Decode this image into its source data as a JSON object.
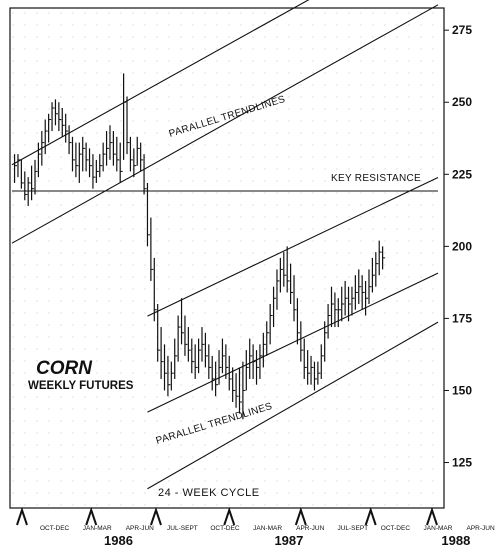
{
  "chart_data": {
    "type": "ohlc",
    "title": "CORN",
    "subtitle": "WEEKLY FUTURES",
    "ylim": [
      112,
      282
    ],
    "y_ticks": [
      125,
      150,
      175,
      200,
      225,
      250,
      275
    ],
    "x_range": [
      1985.625,
      1988.125
    ],
    "quarters": [
      {
        "label": "OCT-DEC",
        "x": 1985.875
      },
      {
        "label": "JAN-MAR",
        "x": 1986.125
      },
      {
        "label": "APR-JUN",
        "x": 1986.375
      },
      {
        "label": "JUL-SEPT",
        "x": 1986.625
      },
      {
        "label": "OCT-DEC",
        "x": 1986.875
      },
      {
        "label": "JAN-MAR",
        "x": 1987.125
      },
      {
        "label": "APR-JUN",
        "x": 1987.375
      },
      {
        "label": "JUL-SEPT",
        "x": 1987.625
      },
      {
        "label": "OCT-DEC",
        "x": 1987.875
      },
      {
        "label": "JAN-MAR",
        "x": 1988.125
      },
      {
        "label": "APR-JUN",
        "x": 1988.375
      }
    ],
    "years": [
      {
        "label": "1986",
        "x": 1986.25
      },
      {
        "label": "1987",
        "x": 1987.25
      },
      {
        "label": "1988",
        "x": 1988.23
      }
    ],
    "series": [
      {
        "values": [
          {
            "x": 1985.6,
            "h": 236,
            "l": 226,
            "c": 232
          },
          {
            "x": 1985.62,
            "h": 234,
            "l": 224,
            "c": 230
          },
          {
            "x": 1985.64,
            "h": 232,
            "l": 222,
            "c": 228
          },
          {
            "x": 1985.66,
            "h": 232,
            "l": 224,
            "c": 230
          },
          {
            "x": 1985.68,
            "h": 230,
            "l": 220,
            "c": 222
          },
          {
            "x": 1985.7,
            "h": 226,
            "l": 216,
            "c": 218
          },
          {
            "x": 1985.72,
            "h": 224,
            "l": 214,
            "c": 222
          },
          {
            "x": 1985.74,
            "h": 228,
            "l": 216,
            "c": 220
          },
          {
            "x": 1985.76,
            "h": 230,
            "l": 218,
            "c": 226
          },
          {
            "x": 1985.78,
            "h": 236,
            "l": 224,
            "c": 232
          },
          {
            "x": 1985.8,
            "h": 240,
            "l": 228,
            "c": 236
          },
          {
            "x": 1985.82,
            "h": 244,
            "l": 232,
            "c": 240
          },
          {
            "x": 1985.84,
            "h": 246,
            "l": 236,
            "c": 244
          },
          {
            "x": 1985.86,
            "h": 250,
            "l": 240,
            "c": 248
          },
          {
            "x": 1985.88,
            "h": 251,
            "l": 242,
            "c": 246
          },
          {
            "x": 1985.9,
            "h": 250,
            "l": 240,
            "c": 244
          },
          {
            "x": 1985.92,
            "h": 248,
            "l": 238,
            "c": 242
          },
          {
            "x": 1985.94,
            "h": 246,
            "l": 236,
            "c": 240
          },
          {
            "x": 1985.96,
            "h": 242,
            "l": 232,
            "c": 236
          },
          {
            "x": 1985.98,
            "h": 238,
            "l": 226,
            "c": 230
          },
          {
            "x": 1986.0,
            "h": 236,
            "l": 224,
            "c": 228
          },
          {
            "x": 1986.02,
            "h": 236,
            "l": 222,
            "c": 232
          },
          {
            "x": 1986.04,
            "h": 238,
            "l": 226,
            "c": 234
          },
          {
            "x": 1986.06,
            "h": 236,
            "l": 226,
            "c": 230
          },
          {
            "x": 1986.08,
            "h": 234,
            "l": 224,
            "c": 228
          },
          {
            "x": 1986.1,
            "h": 232,
            "l": 220,
            "c": 224
          },
          {
            "x": 1986.12,
            "h": 230,
            "l": 222,
            "c": 226
          },
          {
            "x": 1986.14,
            "h": 232,
            "l": 224,
            "c": 228
          },
          {
            "x": 1986.16,
            "h": 236,
            "l": 226,
            "c": 232
          },
          {
            "x": 1986.18,
            "h": 240,
            "l": 228,
            "c": 234
          },
          {
            "x": 1986.2,
            "h": 242,
            "l": 230,
            "c": 236
          },
          {
            "x": 1986.22,
            "h": 240,
            "l": 228,
            "c": 232
          },
          {
            "x": 1986.24,
            "h": 238,
            "l": 226,
            "c": 230
          },
          {
            "x": 1986.26,
            "h": 236,
            "l": 222,
            "c": 226
          },
          {
            "x": 1986.28,
            "h": 260,
            "l": 230,
            "c": 250
          },
          {
            "x": 1986.3,
            "h": 252,
            "l": 232,
            "c": 236
          },
          {
            "x": 1986.32,
            "h": 238,
            "l": 226,
            "c": 230
          },
          {
            "x": 1986.34,
            "h": 234,
            "l": 224,
            "c": 228
          },
          {
            "x": 1986.36,
            "h": 238,
            "l": 228,
            "c": 234
          },
          {
            "x": 1986.38,
            "h": 236,
            "l": 226,
            "c": 230
          },
          {
            "x": 1986.4,
            "h": 232,
            "l": 218,
            "c": 220
          },
          {
            "x": 1986.42,
            "h": 222,
            "l": 200,
            "c": 204
          },
          {
            "x": 1986.44,
            "h": 210,
            "l": 188,
            "c": 192
          },
          {
            "x": 1986.46,
            "h": 196,
            "l": 174,
            "c": 178
          },
          {
            "x": 1986.48,
            "h": 180,
            "l": 160,
            "c": 164
          },
          {
            "x": 1986.5,
            "h": 172,
            "l": 154,
            "c": 160
          },
          {
            "x": 1986.52,
            "h": 166,
            "l": 150,
            "c": 156
          },
          {
            "x": 1986.54,
            "h": 162,
            "l": 148,
            "c": 152
          },
          {
            "x": 1986.56,
            "h": 160,
            "l": 150,
            "c": 156
          },
          {
            "x": 1986.58,
            "h": 168,
            "l": 154,
            "c": 162
          },
          {
            "x": 1986.6,
            "h": 176,
            "l": 160,
            "c": 172
          },
          {
            "x": 1986.62,
            "h": 182,
            "l": 166,
            "c": 170
          },
          {
            "x": 1986.64,
            "h": 176,
            "l": 162,
            "c": 166
          },
          {
            "x": 1986.66,
            "h": 172,
            "l": 160,
            "c": 164
          },
          {
            "x": 1986.68,
            "h": 168,
            "l": 156,
            "c": 160
          },
          {
            "x": 1986.7,
            "h": 166,
            "l": 154,
            "c": 158
          },
          {
            "x": 1986.72,
            "h": 168,
            "l": 156,
            "c": 164
          },
          {
            "x": 1986.74,
            "h": 172,
            "l": 160,
            "c": 166
          },
          {
            "x": 1986.76,
            "h": 170,
            "l": 158,
            "c": 162
          },
          {
            "x": 1986.78,
            "h": 166,
            "l": 154,
            "c": 158
          },
          {
            "x": 1986.8,
            "h": 162,
            "l": 150,
            "c": 154
          },
          {
            "x": 1986.82,
            "h": 160,
            "l": 148,
            "c": 152
          },
          {
            "x": 1986.84,
            "h": 164,
            "l": 152,
            "c": 158
          },
          {
            "x": 1986.86,
            "h": 168,
            "l": 156,
            "c": 162
          },
          {
            "x": 1986.88,
            "h": 166,
            "l": 154,
            "c": 158
          },
          {
            "x": 1986.9,
            "h": 162,
            "l": 150,
            "c": 154
          },
          {
            "x": 1986.92,
            "h": 158,
            "l": 146,
            "c": 150
          },
          {
            "x": 1986.94,
            "h": 156,
            "l": 144,
            "c": 148
          },
          {
            "x": 1986.96,
            "h": 158,
            "l": 142,
            "c": 146
          },
          {
            "x": 1986.98,
            "h": 160,
            "l": 140,
            "c": 150
          },
          {
            "x": 1987.0,
            "h": 164,
            "l": 150,
            "c": 158
          },
          {
            "x": 1987.02,
            "h": 168,
            "l": 154,
            "c": 162
          },
          {
            "x": 1987.04,
            "h": 166,
            "l": 154,
            "c": 160
          },
          {
            "x": 1987.06,
            "h": 164,
            "l": 152,
            "c": 158
          },
          {
            "x": 1987.08,
            "h": 166,
            "l": 154,
            "c": 162
          },
          {
            "x": 1987.1,
            "h": 170,
            "l": 158,
            "c": 166
          },
          {
            "x": 1987.12,
            "h": 174,
            "l": 162,
            "c": 170
          },
          {
            "x": 1987.14,
            "h": 180,
            "l": 166,
            "c": 176
          },
          {
            "x": 1987.16,
            "h": 186,
            "l": 172,
            "c": 182
          },
          {
            "x": 1987.18,
            "h": 192,
            "l": 178,
            "c": 188
          },
          {
            "x": 1987.2,
            "h": 196,
            "l": 184,
            "c": 192
          },
          {
            "x": 1987.22,
            "h": 198,
            "l": 186,
            "c": 190
          },
          {
            "x": 1987.24,
            "h": 200,
            "l": 184,
            "c": 188
          },
          {
            "x": 1987.26,
            "h": 194,
            "l": 180,
            "c": 184
          },
          {
            "x": 1987.28,
            "h": 190,
            "l": 174,
            "c": 178
          },
          {
            "x": 1987.3,
            "h": 182,
            "l": 166,
            "c": 170
          },
          {
            "x": 1987.32,
            "h": 174,
            "l": 160,
            "c": 164
          },
          {
            "x": 1987.34,
            "h": 168,
            "l": 154,
            "c": 158
          },
          {
            "x": 1987.36,
            "h": 164,
            "l": 152,
            "c": 156
          },
          {
            "x": 1987.38,
            "h": 162,
            "l": 152,
            "c": 158
          },
          {
            "x": 1987.4,
            "h": 160,
            "l": 150,
            "c": 154
          },
          {
            "x": 1987.42,
            "h": 160,
            "l": 152,
            "c": 156
          },
          {
            "x": 1987.44,
            "h": 166,
            "l": 154,
            "c": 162
          },
          {
            "x": 1987.46,
            "h": 174,
            "l": 160,
            "c": 170
          },
          {
            "x": 1987.48,
            "h": 180,
            "l": 168,
            "c": 176
          },
          {
            "x": 1987.5,
            "h": 186,
            "l": 172,
            "c": 180
          },
          {
            "x": 1987.52,
            "h": 184,
            "l": 172,
            "c": 178
          },
          {
            "x": 1987.54,
            "h": 182,
            "l": 172,
            "c": 178
          },
          {
            "x": 1987.56,
            "h": 186,
            "l": 174,
            "c": 180
          },
          {
            "x": 1987.58,
            "h": 188,
            "l": 176,
            "c": 182
          },
          {
            "x": 1987.6,
            "h": 186,
            "l": 174,
            "c": 180
          },
          {
            "x": 1987.62,
            "h": 186,
            "l": 176,
            "c": 182
          },
          {
            "x": 1987.64,
            "h": 190,
            "l": 178,
            "c": 184
          },
          {
            "x": 1987.66,
            "h": 192,
            "l": 180,
            "c": 186
          },
          {
            "x": 1987.68,
            "h": 190,
            "l": 178,
            "c": 184
          },
          {
            "x": 1987.7,
            "h": 188,
            "l": 176,
            "c": 182
          },
          {
            "x": 1987.72,
            "h": 192,
            "l": 180,
            "c": 186
          },
          {
            "x": 1987.74,
            "h": 196,
            "l": 184,
            "c": 190
          },
          {
            "x": 1987.76,
            "h": 198,
            "l": 186,
            "c": 194
          },
          {
            "x": 1987.78,
            "h": 202,
            "l": 190,
            "c": 198
          },
          {
            "x": 1987.8,
            "h": 200,
            "l": 192,
            "c": 196
          }
        ]
      }
    ],
    "annotations": [
      {
        "text": "PARALLEL TRENDLINES",
        "angle": -17
      },
      {
        "text": "KEY RESISTANCE"
      },
      {
        "text": "PARALLEL TRENDLINES",
        "angle": -17
      },
      {
        "text": "24 - WEEK CYCLE"
      }
    ],
    "lines": {
      "upper_channel": [
        {
          "from": [
            1985.625,
            228.3
          ],
          "to": [
            1988.125,
            310.5
          ]
        },
        {
          "from": [
            1985.625,
            201.1
          ],
          "to": [
            1988.125,
            283.8
          ]
        }
      ],
      "lower_channel": [
        {
          "from": [
            1986.42,
            175.8
          ],
          "to": [
            1988.125,
            223.9
          ]
        },
        {
          "from": [
            1986.42,
            142.5
          ],
          "to": [
            1988.125,
            190.7
          ]
        },
        {
          "from": [
            1986.42,
            115.9
          ],
          "to": [
            1988.125,
            173.7
          ]
        }
      ],
      "key_resistance": {
        "from": [
          1985.625,
          219.2
        ],
        "to": [
          1988.125,
          219.2
        ]
      }
    },
    "cycle_markers": [
      1985.68,
      1986.09,
      1986.47,
      1986.9,
      1987.32,
      1987.73,
      1988.15
    ]
  }
}
